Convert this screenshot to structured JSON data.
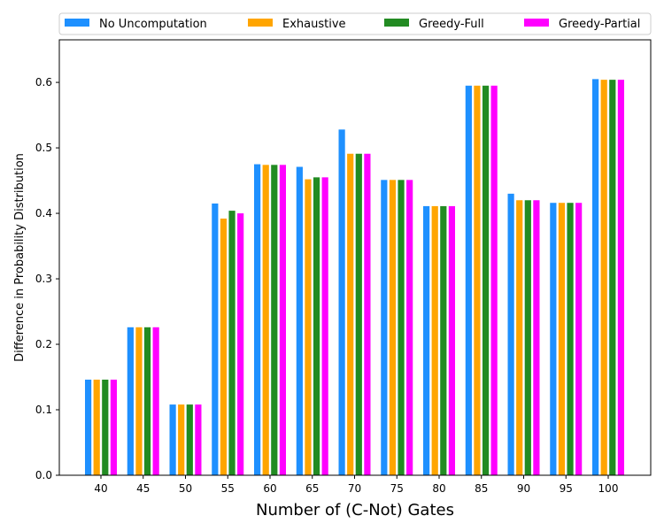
{
  "chart_data": {
    "type": "bar",
    "title": "",
    "xlabel": "Number of (C-Not) Gates",
    "ylabel": "Difference in Probability Distribution",
    "categories": [
      "40",
      "45",
      "50",
      "55",
      "60",
      "65",
      "70",
      "75",
      "80",
      "85",
      "90",
      "95",
      "100"
    ],
    "ylim": [
      0,
      0.665
    ],
    "yticks": [
      "0.0",
      "0.1",
      "0.2",
      "0.3",
      "0.4",
      "0.5",
      "0.6"
    ],
    "grid": false,
    "legend_position": "top",
    "series": [
      {
        "name": "No Uncomputation",
        "color": "#1e90ff",
        "values": [
          0.146,
          0.226,
          0.108,
          0.415,
          0.475,
          0.471,
          0.528,
          0.451,
          0.411,
          0.595,
          0.43,
          0.416,
          0.605
        ]
      },
      {
        "name": "Exhaustive",
        "color": "#ffa500",
        "values": [
          0.146,
          0.226,
          0.108,
          0.392,
          0.474,
          0.452,
          0.491,
          0.451,
          0.411,
          0.595,
          0.42,
          0.416,
          0.604
        ]
      },
      {
        "name": "Greedy-Full",
        "color": "#228b22",
        "values": [
          0.146,
          0.226,
          0.108,
          0.404,
          0.474,
          0.455,
          0.491,
          0.451,
          0.411,
          0.595,
          0.42,
          0.416,
          0.604
        ]
      },
      {
        "name": "Greedy-Partial",
        "color": "#ff00ff",
        "values": [
          0.146,
          0.226,
          0.108,
          0.4,
          0.474,
          0.455,
          0.491,
          0.451,
          0.411,
          0.595,
          0.42,
          0.416,
          0.604
        ]
      }
    ]
  }
}
